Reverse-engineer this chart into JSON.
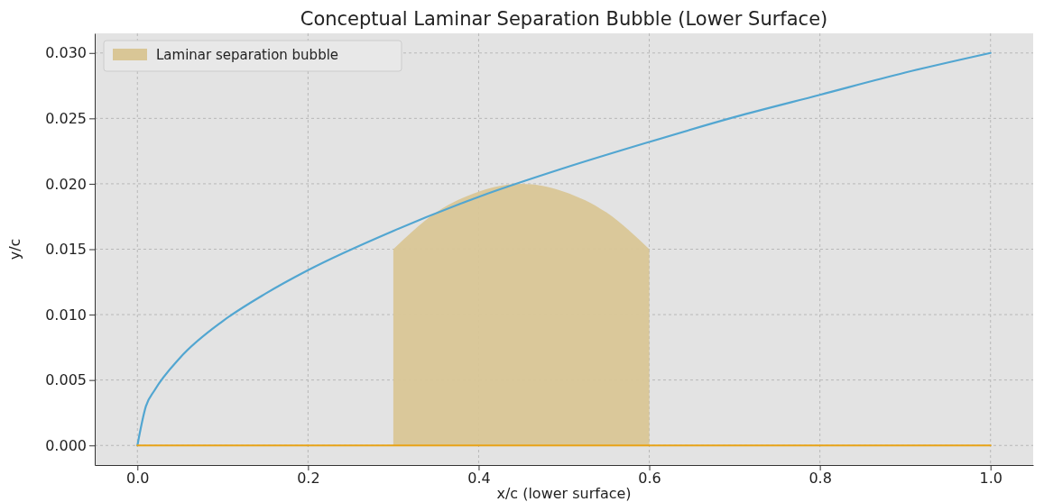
{
  "chart_data": {
    "type": "line",
    "title": "Conceptual Laminar Separation Bubble (Lower Surface)",
    "xlabel": "x/c (lower surface)",
    "ylabel": "y/c",
    "xlim": [
      -0.05,
      1.05
    ],
    "ylim": [
      -0.0015,
      0.0315
    ],
    "xticks": [
      {
        "value": 0,
        "label": "0.0"
      },
      {
        "value": 0.2,
        "label": "0.2"
      },
      {
        "value": 0.4,
        "label": "0.4"
      },
      {
        "value": 0.6,
        "label": "0.6"
      },
      {
        "value": 0.8,
        "label": "0.8"
      },
      {
        "value": 1,
        "label": "1.0"
      }
    ],
    "yticks": [
      {
        "value": 0,
        "label": "0.000"
      },
      {
        "value": 0.005,
        "label": "0.005"
      },
      {
        "value": 0.01,
        "label": "0.010"
      },
      {
        "value": 0.015,
        "label": "0.015"
      },
      {
        "value": 0.02,
        "label": "0.020"
      },
      {
        "value": 0.025,
        "label": "0.025"
      },
      {
        "value": 0.03,
        "label": "0.030"
      }
    ],
    "grid": true,
    "legend": "top left",
    "series": [
      {
        "type": "area",
        "name": "Laminar separation bubble",
        "color": "#d9c696",
        "x": [
          0.3,
          0.35,
          0.4,
          0.45,
          0.5,
          0.55,
          0.6
        ],
        "values": [
          0.015,
          0.0178,
          0.0194,
          0.02,
          0.0194,
          0.0178,
          0.015
        ]
      },
      {
        "color": "#52a6d1",
        "x": [
          0,
          0.01,
          0.02,
          0.05,
          0.1,
          0.15,
          0.2,
          0.3,
          0.4,
          0.5,
          0.6,
          0.7,
          0.8,
          0.9,
          1.0
        ],
        "values": [
          0,
          0.003,
          0.0042,
          0.0067,
          0.0095,
          0.0116,
          0.0134,
          0.0164,
          0.019,
          0.0212,
          0.0232,
          0.0251,
          0.0268,
          0.0285,
          0.03
        ]
      },
      {
        "color": "#e8a317",
        "x": [
          0,
          1
        ],
        "values": [
          0,
          0
        ]
      }
    ]
  }
}
